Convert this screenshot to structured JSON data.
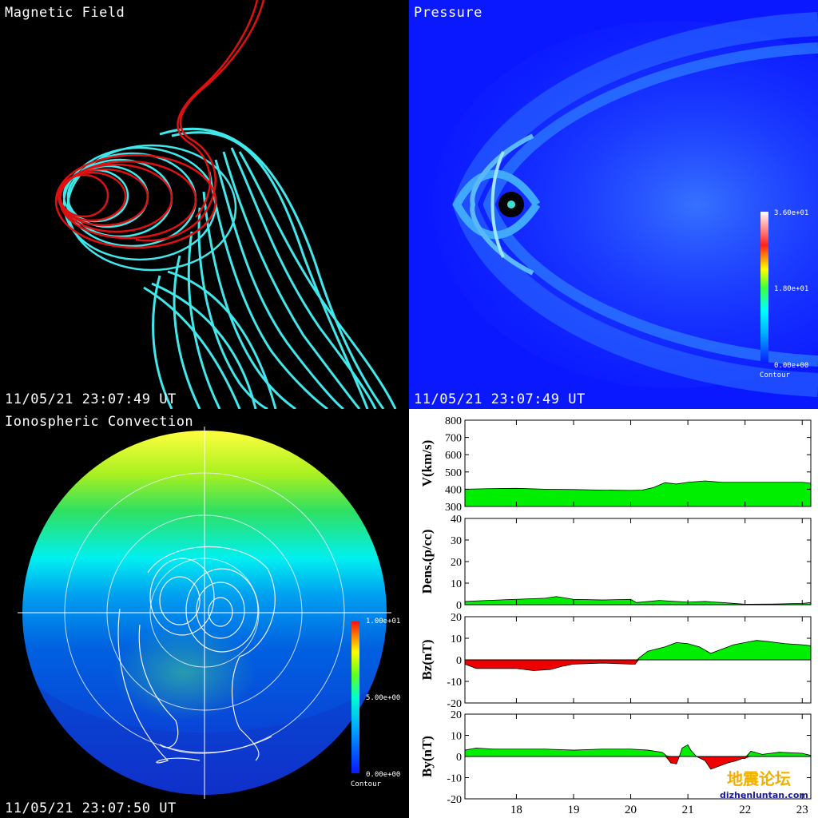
{
  "panels": {
    "magnetic": {
      "title": "Magnetic Field",
      "timestamp": "11/05/21 23:07:49 UT"
    },
    "pressure": {
      "title": "Pressure",
      "timestamp": "11/05/21 23:07:49 UT",
      "colorbar": {
        "max": "3.60e+01",
        "mid": "1.80e+01",
        "min": "0.00e+00",
        "label": "Contour"
      }
    },
    "ionosphere": {
      "title": "Ionospheric Convection",
      "timestamp": "11/05/21 23:07:50 UT",
      "colorbar": {
        "max": "1.00e+01",
        "mid": "5.00e+00",
        "min": "0.00e+00",
        "label": "Contour"
      }
    }
  },
  "watermark": {
    "text": "地震论坛",
    "url": "dizhenluntan.com"
  },
  "colors": {
    "positive_fill": "#00ee00",
    "negative_fill": "#ee0000",
    "field_line_cyan": "#40e8ec",
    "field_line_red": "#dd1111"
  },
  "chart_data": {
    "type": "area",
    "x_ticks": [
      "18",
      "19",
      "20",
      "21",
      "22",
      "23"
    ],
    "xlim": [
      17.1,
      23.15
    ],
    "series": [
      {
        "ylabel": "V(km/s)",
        "ylim": [
          300,
          800
        ],
        "yticks": [
          "800",
          "700",
          "600",
          "500",
          "400",
          "300"
        ],
        "baseline": 300,
        "x": [
          17.1,
          17.5,
          18.0,
          18.5,
          19.0,
          19.5,
          20.0,
          20.2,
          20.4,
          20.6,
          20.8,
          21.0,
          21.3,
          21.6,
          22.0,
          22.5,
          23.0,
          23.15
        ],
        "y": [
          400,
          403,
          405,
          400,
          398,
          395,
          393,
          395,
          410,
          438,
          430,
          440,
          448,
          440,
          440,
          440,
          440,
          435
        ]
      },
      {
        "ylabel": "Dens.(p/cc)",
        "ylim": [
          0,
          40
        ],
        "yticks": [
          "40",
          "30",
          "20",
          "10",
          "0"
        ],
        "baseline": 0,
        "x": [
          17.1,
          17.5,
          18.0,
          18.5,
          18.7,
          19.0,
          19.5,
          20.0,
          20.1,
          20.5,
          21.0,
          21.3,
          21.6,
          22.0,
          22.5,
          23.0,
          23.15
        ],
        "y": [
          1.5,
          2,
          2.5,
          3,
          3.8,
          2.5,
          2.2,
          2.5,
          1,
          2,
          1.2,
          1.5,
          1,
          0.2,
          0.3,
          0.6,
          1
        ]
      },
      {
        "ylabel": "Bz(nT)",
        "ylim": [
          -20,
          20
        ],
        "yticks": [
          "20",
          "10",
          "0",
          "-10",
          "-20"
        ],
        "baseline": 0,
        "x": [
          17.1,
          17.3,
          17.6,
          18.0,
          18.3,
          18.6,
          18.8,
          19.0,
          19.5,
          20.0,
          20.08,
          20.15,
          20.3,
          20.6,
          20.8,
          21.0,
          21.2,
          21.4,
          21.6,
          21.8,
          22.0,
          22.2,
          22.4,
          22.7,
          23.0,
          23.15
        ],
        "y": [
          -2,
          -4,
          -4,
          -4,
          -5,
          -4.5,
          -3,
          -2,
          -1.5,
          -2,
          -2,
          1,
          4,
          6,
          8,
          7.5,
          6,
          3,
          5,
          7,
          8,
          9,
          8.5,
          7.5,
          7,
          6.5
        ]
      },
      {
        "ylabel": "By(nT)",
        "ylim": [
          -20,
          20
        ],
        "yticks": [
          "20",
          "10",
          "0",
          "-10",
          "-20"
        ],
        "baseline": 0,
        "x": [
          17.1,
          17.3,
          17.6,
          18.0,
          18.5,
          19.0,
          19.5,
          20.0,
          20.3,
          20.55,
          20.6,
          20.7,
          20.8,
          20.85,
          20.9,
          21.0,
          21.05,
          21.15,
          21.3,
          21.4,
          21.5,
          21.7,
          21.85,
          21.95,
          22.0,
          22.1,
          22.3,
          22.6,
          23.0,
          23.15
        ],
        "y": [
          3,
          4,
          3.5,
          3.5,
          3.5,
          3,
          3.5,
          3.5,
          3,
          2,
          1,
          -3,
          -3.5,
          0,
          4,
          5.5,
          3,
          0,
          -2,
          -6,
          -5,
          -3,
          -2,
          -1,
          -1,
          2.5,
          1,
          2,
          1.5,
          0.5
        ]
      }
    ]
  }
}
